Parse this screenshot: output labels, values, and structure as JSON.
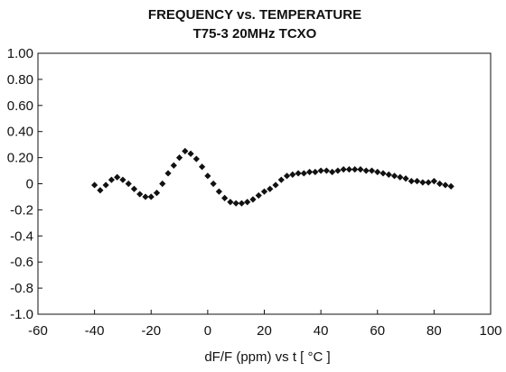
{
  "chart_data": {
    "type": "scatter",
    "title": "FREQUENCY vs. TEMPERATURE",
    "subtitle": "T75-3 20MHz TCXO",
    "xlabel": "dF/F (ppm)  vs  t [ °C ]",
    "ylabel": "",
    "xlim": [
      -60,
      100
    ],
    "ylim": [
      -1.0,
      1.0
    ],
    "x_ticks": [
      -60,
      -40,
      -20,
      0,
      20,
      40,
      60,
      80,
      100
    ],
    "x_tick_labels": [
      "-60",
      "-40",
      "-20",
      "0",
      "20",
      "40",
      "60",
      "80",
      "100"
    ],
    "y_ticks": [
      1.0,
      0.8,
      0.6,
      0.4,
      0.2,
      0,
      -0.2,
      -0.4,
      -0.6,
      -0.8,
      -1.0
    ],
    "y_tick_labels": [
      "1.00",
      "0.80",
      "0.60",
      "0.40",
      "0.20",
      "0",
      "-0.2",
      "-0.4",
      "-0.6",
      "-0.8",
      "-1.0"
    ],
    "grid": false,
    "colors": {
      "marker": "#111111",
      "axis": "#111111",
      "background": "#ffffff"
    },
    "series": [
      {
        "marker": "diamond",
        "points": [
          [
            -40,
            -0.01
          ],
          [
            -38,
            -0.05
          ],
          [
            -36,
            -0.01
          ],
          [
            -34,
            0.03
          ],
          [
            -32,
            0.05
          ],
          [
            -30,
            0.03
          ],
          [
            -28,
            0.0
          ],
          [
            -26,
            -0.04
          ],
          [
            -24,
            -0.08
          ],
          [
            -22,
            -0.1
          ],
          [
            -20,
            -0.1
          ],
          [
            -18,
            -0.07
          ],
          [
            -16,
            0.0
          ],
          [
            -14,
            0.08
          ],
          [
            -12,
            0.14
          ],
          [
            -10,
            0.2
          ],
          [
            -8,
            0.25
          ],
          [
            -6,
            0.23
          ],
          [
            -4,
            0.19
          ],
          [
            -2,
            0.13
          ],
          [
            0,
            0.06
          ],
          [
            2,
            0.0
          ],
          [
            4,
            -0.06
          ],
          [
            6,
            -0.11
          ],
          [
            8,
            -0.14
          ],
          [
            10,
            -0.15
          ],
          [
            12,
            -0.15
          ],
          [
            14,
            -0.14
          ],
          [
            16,
            -0.12
          ],
          [
            18,
            -0.09
          ],
          [
            20,
            -0.06
          ],
          [
            22,
            -0.04
          ],
          [
            24,
            -0.01
          ],
          [
            26,
            0.03
          ],
          [
            28,
            0.06
          ],
          [
            30,
            0.07
          ],
          [
            32,
            0.08
          ],
          [
            34,
            0.08
          ],
          [
            36,
            0.09
          ],
          [
            38,
            0.09
          ],
          [
            40,
            0.1
          ],
          [
            42,
            0.1
          ],
          [
            44,
            0.09
          ],
          [
            46,
            0.1
          ],
          [
            48,
            0.11
          ],
          [
            50,
            0.11
          ],
          [
            52,
            0.11
          ],
          [
            54,
            0.11
          ],
          [
            56,
            0.1
          ],
          [
            58,
            0.1
          ],
          [
            60,
            0.09
          ],
          [
            62,
            0.08
          ],
          [
            64,
            0.07
          ],
          [
            66,
            0.06
          ],
          [
            68,
            0.05
          ],
          [
            70,
            0.04
          ],
          [
            72,
            0.02
          ],
          [
            74,
            0.02
          ],
          [
            76,
            0.01
          ],
          [
            78,
            0.01
          ],
          [
            80,
            0.02
          ],
          [
            82,
            0.0
          ],
          [
            84,
            -0.01
          ],
          [
            86,
            -0.02
          ]
        ]
      }
    ]
  }
}
